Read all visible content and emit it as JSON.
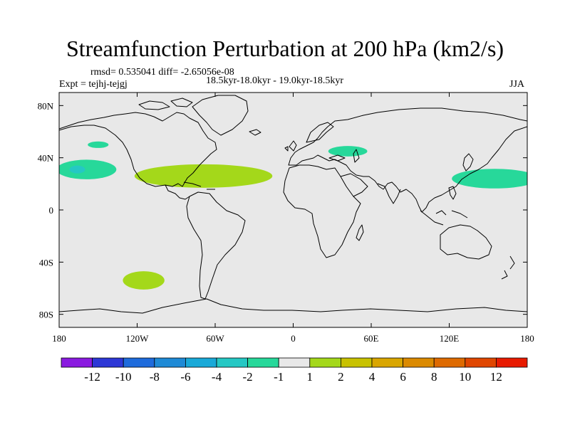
{
  "title": "Streamfunction Perturbation at 200 hPa (km2/s)",
  "stats": "rmsd= 0.535041 diff= -2.65056e-08",
  "experiment": "Expt = tejhj-tejgj",
  "period": "18.5kyr-18.0kyr - 19.0kyr-18.5kyr",
  "season": "JJA",
  "colors": {
    "ocean_neutral": "#e8e8e8",
    "coast": "#000000",
    "pos_light": "#a4d81a",
    "neg_light": "#27d89a",
    "neg_mid": "#25c8c4"
  },
  "chart_data": {
    "type": "heatmap",
    "projection": "cylindrical-equidistant",
    "lon_range": [
      -180,
      180
    ],
    "lat_range": [
      -90,
      90
    ],
    "x_ticks": [
      {
        "lon": -180,
        "label": "180"
      },
      {
        "lon": -120,
        "label": "120W"
      },
      {
        "lon": -60,
        "label": "60W"
      },
      {
        "lon": 0,
        "label": "0"
      },
      {
        "lon": 60,
        "label": "60E"
      },
      {
        "lon": 120,
        "label": "120E"
      },
      {
        "lon": 180,
        "label": "180"
      }
    ],
    "y_ticks": [
      {
        "lat": 80,
        "label": "80N"
      },
      {
        "lat": 40,
        "label": "40N"
      },
      {
        "lat": 0,
        "label": "0"
      },
      {
        "lat": -40,
        "label": "40S"
      },
      {
        "lat": -80,
        "label": "80S"
      }
    ],
    "anomalies": [
      {
        "name": "neg-pacific-ne",
        "level": -2,
        "lon": -159,
        "lat": 31,
        "rlon": 23,
        "rlat": 7.5
      },
      {
        "name": "neg-pacific-ne-core",
        "level": -4,
        "lon": -166,
        "lat": 31,
        "rlon": 6,
        "rlat": 3
      },
      {
        "name": "neg-pacific-n-small",
        "level": -2,
        "lon": -150,
        "lat": 50,
        "rlon": 8,
        "rlat": 2.5
      },
      {
        "name": "pos-north-atlantic",
        "level": 2,
        "lon": -69,
        "lat": 26,
        "rlon": 53,
        "rlat": 9
      },
      {
        "name": "neg-eastern-europe",
        "level": -2,
        "lon": 42,
        "lat": 45,
        "rlon": 15,
        "rlat": 4
      },
      {
        "name": "neg-west-pacific",
        "level": -2,
        "lon": 155,
        "lat": 24,
        "rlon": 33,
        "rlat": 7.5
      },
      {
        "name": "pos-south-pacific",
        "level": 2,
        "lon": -115,
        "lat": -54,
        "rlon": 16,
        "rlat": 7
      }
    ],
    "colorbar": {
      "colors": [
        "#8a1ae0",
        "#2d37d6",
        "#1e6bdc",
        "#1e8ad6",
        "#19a9d8",
        "#25c8c4",
        "#27d89a",
        "#e8e8e8",
        "#a4d81a",
        "#c8c200",
        "#d9a600",
        "#db8a00",
        "#de6a00",
        "#e04600",
        "#e81a00"
      ],
      "labels": [
        "-12",
        "-10",
        "-8",
        "-6",
        "-4",
        "-2",
        "-1",
        "1",
        "2",
        "4",
        "6",
        "8",
        "10",
        "12"
      ]
    }
  }
}
